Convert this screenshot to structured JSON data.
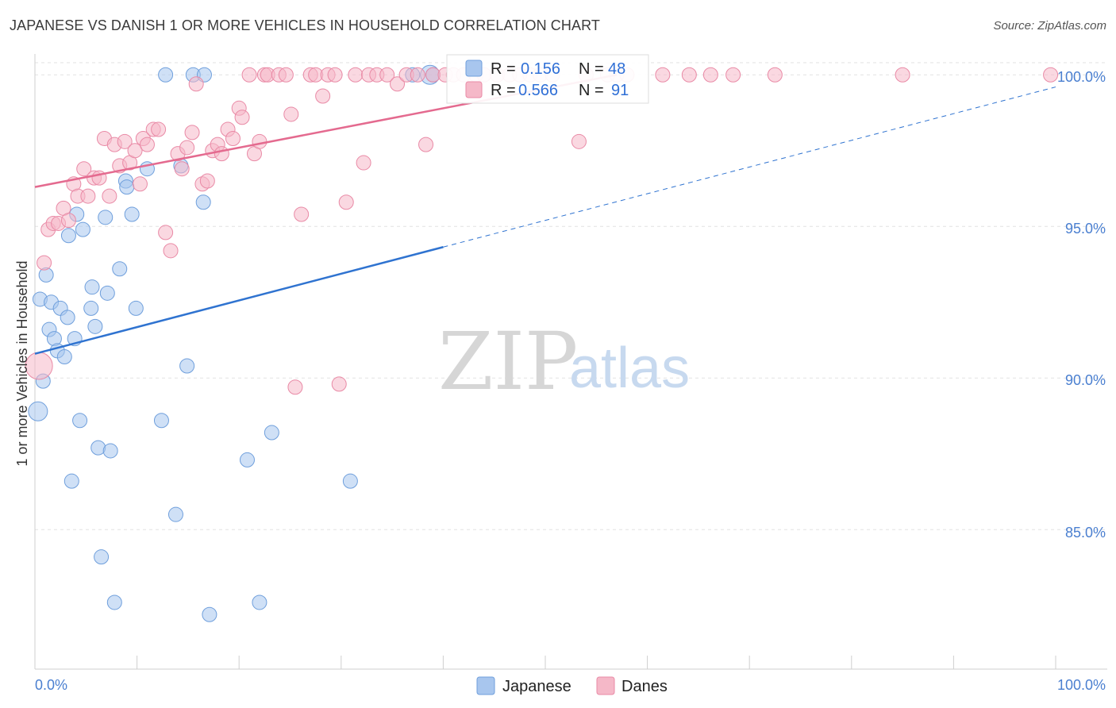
{
  "title": "JAPANESE VS DANISH 1 OR MORE VEHICLES IN HOUSEHOLD CORRELATION CHART",
  "source": "Source: ZipAtlas.com",
  "watermark": {
    "zip": "ZIP",
    "atlas": "atlas"
  },
  "chart_data": {
    "type": "scatter",
    "xlabel": "",
    "ylabel": "1 or more Vehicles in Household",
    "xlim": [
      0,
      100
    ],
    "ylim": [
      80.4,
      100.4
    ],
    "x_tick_labels": [
      "0.0%",
      "100.0%"
    ],
    "y_ticks": [
      {
        "value": 85,
        "label": "85.0%"
      },
      {
        "value": 90,
        "label": "90.0%"
      },
      {
        "value": 95,
        "label": "95.0%"
      },
      {
        "value": 100,
        "label": "100.0%"
      }
    ],
    "grid": true,
    "legend_position": "bottom-center",
    "series": [
      {
        "name": "Japanese",
        "color": "#a8c6ee",
        "stroke": "#6f9fdc",
        "trend_color": "#2f73d0",
        "R": "0.156",
        "N": "48",
        "trend": {
          "x0": 0,
          "y0": 90.8,
          "x1": 100,
          "y1": 99.6,
          "solid_until": 40
        },
        "points": [
          [
            0.3,
            88.9
          ],
          [
            0.5,
            92.6
          ],
          [
            0.8,
            89.9
          ],
          [
            1.1,
            93.4
          ],
          [
            1.4,
            91.6
          ],
          [
            1.6,
            92.5
          ],
          [
            1.9,
            91.3
          ],
          [
            2.2,
            90.9
          ],
          [
            2.5,
            92.3
          ],
          [
            2.9,
            90.7
          ],
          [
            3.2,
            92.0
          ],
          [
            3.3,
            94.7
          ],
          [
            3.6,
            86.6
          ],
          [
            3.9,
            91.3
          ],
          [
            4.1,
            95.4
          ],
          [
            4.4,
            88.6
          ],
          [
            4.7,
            94.9
          ],
          [
            5.5,
            92.3
          ],
          [
            5.6,
            93.0
          ],
          [
            5.9,
            91.7
          ],
          [
            6.2,
            87.7
          ],
          [
            6.5,
            84.1
          ],
          [
            6.9,
            95.3
          ],
          [
            7.1,
            92.8
          ],
          [
            7.4,
            87.6
          ],
          [
            7.8,
            82.6
          ],
          [
            8.3,
            93.6
          ],
          [
            8.9,
            96.5
          ],
          [
            9.0,
            96.3
          ],
          [
            9.5,
            95.4
          ],
          [
            9.9,
            92.3
          ],
          [
            11.0,
            96.9
          ],
          [
            12.4,
            88.6
          ],
          [
            12.8,
            100.0
          ],
          [
            13.8,
            85.5
          ],
          [
            14.3,
            97.0
          ],
          [
            14.9,
            90.4
          ],
          [
            15.5,
            100.0
          ],
          [
            16.5,
            95.8
          ],
          [
            16.6,
            100.0
          ],
          [
            17.1,
            82.2
          ],
          [
            20.8,
            87.3
          ],
          [
            22.0,
            82.6
          ],
          [
            23.2,
            88.2
          ],
          [
            30.9,
            86.6
          ],
          [
            37.0,
            100.0
          ],
          [
            38.7,
            100.0
          ],
          [
            39.0,
            100.0
          ]
        ],
        "point_sizes": {
          "0": 12,
          "46": 12
        }
      },
      {
        "name": "Danes",
        "color": "#f5b8c8",
        "stroke": "#e98aa6",
        "trend_color": "#e46a8f",
        "R": "0.566",
        "N": "91",
        "trend": {
          "x0": 0,
          "y0": 96.3,
          "x1": 57,
          "y1": 100.0,
          "solid_until": 57
        },
        "points": [
          [
            0.4,
            90.4
          ],
          [
            0.9,
            93.8
          ],
          [
            1.3,
            94.9
          ],
          [
            1.8,
            95.1
          ],
          [
            2.3,
            95.1
          ],
          [
            2.8,
            95.6
          ],
          [
            3.3,
            95.2
          ],
          [
            3.8,
            96.4
          ],
          [
            4.2,
            96.0
          ],
          [
            4.8,
            96.9
          ],
          [
            5.2,
            96.0
          ],
          [
            5.8,
            96.6
          ],
          [
            6.3,
            96.6
          ],
          [
            6.8,
            97.9
          ],
          [
            7.3,
            96.0
          ],
          [
            7.8,
            97.7
          ],
          [
            8.3,
            97.0
          ],
          [
            8.8,
            97.8
          ],
          [
            9.3,
            97.1
          ],
          [
            9.8,
            97.5
          ],
          [
            10.3,
            96.4
          ],
          [
            10.6,
            97.9
          ],
          [
            11.0,
            97.7
          ],
          [
            11.6,
            98.2
          ],
          [
            12.1,
            98.2
          ],
          [
            12.8,
            94.8
          ],
          [
            13.3,
            94.2
          ],
          [
            14.0,
            97.4
          ],
          [
            14.4,
            96.9
          ],
          [
            14.9,
            97.6
          ],
          [
            15.4,
            98.1
          ],
          [
            15.8,
            99.7
          ],
          [
            16.4,
            96.4
          ],
          [
            16.9,
            96.5
          ],
          [
            17.4,
            97.5
          ],
          [
            17.9,
            97.7
          ],
          [
            18.3,
            97.4
          ],
          [
            18.9,
            98.2
          ],
          [
            19.4,
            97.9
          ],
          [
            20.0,
            98.9
          ],
          [
            20.3,
            98.6
          ],
          [
            21.0,
            100.0
          ],
          [
            21.5,
            97.4
          ],
          [
            22.0,
            97.8
          ],
          [
            22.5,
            100.0
          ],
          [
            22.8,
            100.0
          ],
          [
            23.9,
            100.0
          ],
          [
            24.6,
            100.0
          ],
          [
            25.1,
            98.7
          ],
          [
            25.5,
            89.7
          ],
          [
            26.1,
            95.4
          ],
          [
            27.0,
            100.0
          ],
          [
            27.5,
            100.0
          ],
          [
            28.2,
            99.3
          ],
          [
            28.7,
            100.0
          ],
          [
            29.4,
            100.0
          ],
          [
            29.8,
            89.8
          ],
          [
            30.5,
            95.8
          ],
          [
            31.4,
            100.0
          ],
          [
            32.2,
            97.1
          ],
          [
            32.7,
            100.0
          ],
          [
            33.5,
            100.0
          ],
          [
            34.5,
            100.0
          ],
          [
            35.5,
            99.7
          ],
          [
            36.4,
            100.0
          ],
          [
            37.5,
            100.0
          ],
          [
            38.3,
            97.7
          ],
          [
            39.0,
            100.0
          ],
          [
            40.2,
            100.0
          ],
          [
            41.0,
            100.0
          ],
          [
            42.0,
            100.0
          ],
          [
            43.2,
            100.0
          ],
          [
            44.0,
            100.0
          ],
          [
            45.3,
            100.0
          ],
          [
            46.5,
            100.0
          ],
          [
            47.5,
            100.0
          ],
          [
            48.5,
            100.0
          ],
          [
            49.5,
            100.0
          ],
          [
            50.7,
            100.0
          ],
          [
            53.3,
            97.8
          ],
          [
            54.0,
            100.0
          ],
          [
            56.1,
            100.0
          ],
          [
            57.0,
            100.0
          ],
          [
            58.0,
            100.0
          ],
          [
            61.5,
            100.0
          ],
          [
            64.1,
            100.0
          ],
          [
            66.2,
            100.0
          ],
          [
            68.4,
            100.0
          ],
          [
            72.5,
            100.0
          ],
          [
            85.0,
            100.0
          ],
          [
            99.5,
            100.0
          ]
        ],
        "point_sizes": {
          "0": 17
        }
      }
    ]
  },
  "legend": {
    "items": [
      {
        "label": "Japanese"
      },
      {
        "label": "Danes"
      }
    ],
    "stats": {
      "r_label": "R =",
      "n_label": "N ="
    }
  }
}
